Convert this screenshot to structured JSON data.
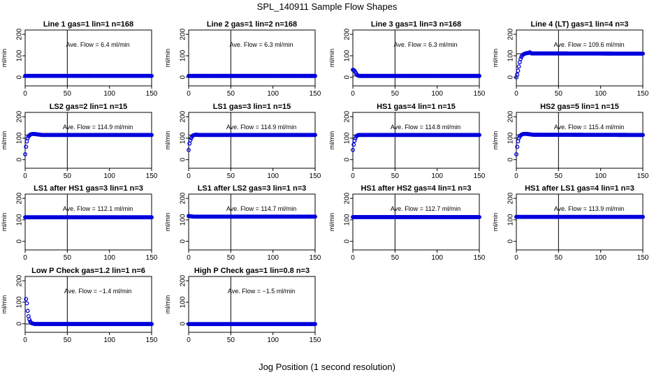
{
  "figure": {
    "title": "SPL_140911  Sample Flow Shapes",
    "xlabel": "Jog Position (1 second resolution)"
  },
  "colors": {
    "points": "#0000dd",
    "axis": "#000000"
  },
  "chart_data": [
    {
      "type": "scatter",
      "title": "Line 1 gas=1 lin=1 n=168",
      "annotation": "Ave. Flow =  6.4  ml/min",
      "ylabel": "ml/min",
      "xlim": [
        0,
        150
      ],
      "ylim": [
        -40,
        220
      ],
      "xticks": [
        0,
        50,
        100,
        150
      ],
      "yticks": [
        0,
        100,
        200
      ],
      "hline": 6.4,
      "vline": 50,
      "x": [
        0,
        2,
        4,
        150
      ],
      "y": [
        6.4,
        6.4,
        6.4,
        6.4
      ]
    },
    {
      "type": "scatter",
      "title": "Line 2 gas=1 lin=2 n=168",
      "annotation": "Ave. Flow =  6.3  ml/min",
      "ylabel": "ml/min",
      "xlim": [
        0,
        150
      ],
      "ylim": [
        -40,
        220
      ],
      "xticks": [
        0,
        50,
        100,
        150
      ],
      "yticks": [
        0,
        100,
        200
      ],
      "hline": 6.3,
      "vline": 50,
      "x": [
        0,
        2,
        4,
        150
      ],
      "y": [
        6.3,
        6.3,
        6.3,
        6.3
      ]
    },
    {
      "type": "scatter",
      "title": "Line 3 gas=1 lin=3 n=168",
      "annotation": "Ave. Flow =  6.3  ml/min",
      "ylabel": "ml/min",
      "xlim": [
        0,
        150
      ],
      "ylim": [
        -40,
        220
      ],
      "xticks": [
        0,
        50,
        100,
        150
      ],
      "yticks": [
        0,
        100,
        200
      ],
      "hline": 6.3,
      "vline": 50,
      "x": [
        0,
        1,
        2,
        3,
        4,
        5,
        6,
        8,
        10,
        150
      ],
      "y": [
        35,
        34,
        30,
        24,
        17,
        11,
        8,
        6.3,
        6.3,
        6.3
      ]
    },
    {
      "type": "scatter",
      "title": "Line 4 (LT) gas=1 lin=4 n=3",
      "annotation": "Ave. Flow =  109.6  ml/min",
      "ylabel": "ml/min",
      "xlim": [
        0,
        150
      ],
      "ylim": [
        -40,
        220
      ],
      "xticks": [
        0,
        50,
        100,
        150
      ],
      "yticks": [
        0,
        100,
        200
      ],
      "hline": 109.6,
      "vline": 50,
      "x": [
        0,
        1,
        2,
        3,
        4,
        5,
        6,
        7,
        8,
        9,
        10,
        12,
        14,
        16,
        18,
        150
      ],
      "y": [
        0,
        12,
        30,
        50,
        70,
        85,
        95,
        102,
        106,
        108,
        110,
        112,
        113,
        116,
        111,
        110
      ]
    },
    {
      "type": "scatter",
      "title": "LS2 gas=2 lin=1 n=15",
      "annotation": "Ave. Flow =  114.9  ml/min",
      "ylabel": "ml/min",
      "xlim": [
        0,
        150
      ],
      "ylim": [
        -40,
        220
      ],
      "xticks": [
        0,
        50,
        100,
        150
      ],
      "yticks": [
        0,
        100,
        200
      ],
      "hline": 114.9,
      "vline": 50,
      "x": [
        0,
        1,
        2,
        3,
        4,
        5,
        6,
        7,
        8,
        9,
        10,
        12,
        14,
        16,
        18,
        20,
        150
      ],
      "y": [
        25,
        60,
        85,
        100,
        108,
        113,
        116,
        118,
        119,
        120,
        120,
        119,
        118,
        117,
        116,
        115,
        115
      ]
    },
    {
      "type": "scatter",
      "title": "LS1 gas=3 lin=1 n=15",
      "annotation": "Ave. Flow =  114.9  ml/min",
      "ylabel": "ml/min",
      "xlim": [
        0,
        150
      ],
      "ylim": [
        -40,
        220
      ],
      "xticks": [
        0,
        50,
        100,
        150
      ],
      "yticks": [
        0,
        100,
        200
      ],
      "hline": 114.9,
      "vline": 50,
      "x": [
        0,
        1,
        2,
        3,
        4,
        5,
        6,
        7,
        8,
        10,
        12,
        150
      ],
      "y": [
        45,
        75,
        90,
        100,
        108,
        112,
        114,
        115,
        116,
        116,
        115,
        115
      ]
    },
    {
      "type": "scatter",
      "title": "HS1 gas=4 lin=1 n=15",
      "annotation": "Ave. Flow =  114.8  ml/min",
      "ylabel": "ml/min",
      "xlim": [
        0,
        150
      ],
      "ylim": [
        -40,
        220
      ],
      "xticks": [
        0,
        50,
        100,
        150
      ],
      "yticks": [
        0,
        100,
        200
      ],
      "hline": 114.8,
      "vline": 50,
      "x": [
        0,
        1,
        2,
        3,
        4,
        5,
        6,
        7,
        8,
        10,
        12,
        150
      ],
      "y": [
        45,
        70,
        88,
        100,
        108,
        112,
        114,
        115,
        115,
        115,
        115,
        115
      ]
    },
    {
      "type": "scatter",
      "title": "HS2 gas=5 lin=1 n=15",
      "annotation": "Ave. Flow =  115.4  ml/min",
      "ylabel": "ml/min",
      "xlim": [
        0,
        150
      ],
      "ylim": [
        -40,
        220
      ],
      "xticks": [
        0,
        50,
        100,
        150
      ],
      "yticks": [
        0,
        100,
        200
      ],
      "hline": 115.4,
      "vline": 50,
      "x": [
        0,
        1,
        2,
        3,
        4,
        5,
        6,
        7,
        8,
        9,
        10,
        12,
        14,
        16,
        18,
        20,
        22,
        150
      ],
      "y": [
        25,
        60,
        85,
        100,
        108,
        113,
        116,
        118,
        119,
        120,
        120,
        120,
        119,
        118,
        117,
        116,
        116,
        115
      ]
    },
    {
      "type": "scatter",
      "title": "LS1 after HS1 gas=3 lin=1 n=3",
      "annotation": "Ave. Flow =  112.1  ml/min",
      "ylabel": "ml/min",
      "xlim": [
        0,
        150
      ],
      "ylim": [
        -40,
        220
      ],
      "xticks": [
        0,
        50,
        100,
        150
      ],
      "yticks": [
        0,
        100,
        200
      ],
      "hline": 112.1,
      "vline": 50,
      "x": [
        0,
        2,
        4,
        150
      ],
      "y": [
        112,
        112,
        112,
        112
      ]
    },
    {
      "type": "scatter",
      "title": "LS1 after LS2 gas=3 lin=1 n=3",
      "annotation": "Ave. Flow =  114.7  ml/min",
      "ylabel": "ml/min",
      "xlim": [
        0,
        150
      ],
      "ylim": [
        -40,
        220
      ],
      "xticks": [
        0,
        50,
        100,
        150
      ],
      "yticks": [
        0,
        100,
        200
      ],
      "hline": 114.7,
      "vline": 50,
      "x": [
        0,
        2,
        4,
        6,
        8,
        150
      ],
      "y": [
        118,
        117,
        116,
        115,
        115,
        115
      ]
    },
    {
      "type": "scatter",
      "title": "HS1 after HS2 gas=4 lin=1 n=3",
      "annotation": "Ave. Flow =  112.7  ml/min",
      "ylabel": "ml/min",
      "xlim": [
        0,
        150
      ],
      "ylim": [
        -40,
        220
      ],
      "xticks": [
        0,
        50,
        100,
        150
      ],
      "yticks": [
        0,
        100,
        200
      ],
      "hline": 112.7,
      "vline": 50,
      "x": [
        0,
        2,
        4,
        150
      ],
      "y": [
        113,
        113,
        113,
        113
      ]
    },
    {
      "type": "scatter",
      "title": "HS1 after LS1 gas=4 lin=1 n=3",
      "annotation": "Ave. Flow =  113.9  ml/min",
      "ylabel": "ml/min",
      "xlim": [
        0,
        150
      ],
      "ylim": [
        -40,
        220
      ],
      "xticks": [
        0,
        50,
        100,
        150
      ],
      "yticks": [
        0,
        100,
        200
      ],
      "hline": 113.9,
      "vline": 50,
      "x": [
        0,
        2,
        4,
        150
      ],
      "y": [
        113.9,
        113.9,
        113.9,
        113.9
      ]
    },
    {
      "type": "scatter",
      "title": "Low P Check gas=1.2 lin=1 n=6",
      "annotation": "Ave. Flow =  −1.4  ml/min",
      "ylabel": "ml/min",
      "xlim": [
        0,
        150
      ],
      "ylim": [
        -40,
        220
      ],
      "xticks": [
        0,
        50,
        100,
        150
      ],
      "yticks": [
        0,
        100,
        200
      ],
      "hline": -1.4,
      "vline": 50,
      "x": [
        1,
        2,
        3,
        4,
        5,
        6,
        7,
        8,
        10,
        12,
        150
      ],
      "y": [
        115,
        95,
        60,
        35,
        20,
        10,
        5,
        2,
        0,
        -1.4,
        -1.4
      ]
    },
    {
      "type": "scatter",
      "title": "High P Check gas=1 lin=0.8 n=3",
      "annotation": "Ave. Flow =  −1.5  ml/min",
      "ylabel": "ml/min",
      "xlim": [
        0,
        150
      ],
      "ylim": [
        -40,
        220
      ],
      "xticks": [
        0,
        50,
        100,
        150
      ],
      "yticks": [
        0,
        100,
        200
      ],
      "hline": -1.5,
      "vline": 50,
      "x": [
        0,
        2,
        4,
        150
      ],
      "y": [
        -1.5,
        -1.5,
        -1.5,
        -1.5
      ]
    }
  ]
}
